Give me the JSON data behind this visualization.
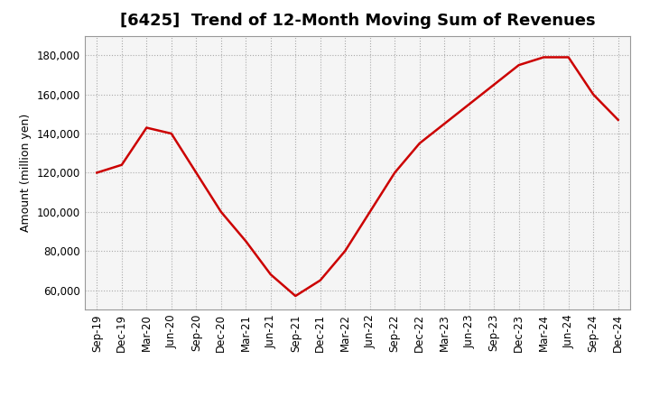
{
  "title": "[6425]  Trend of 12-Month Moving Sum of Revenues",
  "ylabel": "Amount (million yen)",
  "x_labels": [
    "Sep-19",
    "Dec-19",
    "Mar-20",
    "Jun-20",
    "Sep-20",
    "Dec-20",
    "Mar-21",
    "Jun-21",
    "Sep-21",
    "Dec-21",
    "Mar-22",
    "Jun-22",
    "Sep-22",
    "Dec-22",
    "Mar-23",
    "Jun-23",
    "Sep-23",
    "Dec-23",
    "Mar-24",
    "Jun-24",
    "Sep-24",
    "Dec-24"
  ],
  "values": [
    120000,
    124000,
    143000,
    140000,
    120000,
    100000,
    85000,
    68000,
    57000,
    65000,
    80000,
    100000,
    120000,
    135000,
    145000,
    155000,
    165000,
    175000,
    179000,
    179000,
    160000,
    147000
  ],
  "line_color": "#cc0000",
  "background_color": "#ffffff",
  "plot_bg_color": "#f5f5f5",
  "ylim": [
    50000,
    190000
  ],
  "yticks": [
    60000,
    80000,
    100000,
    120000,
    140000,
    160000,
    180000
  ],
  "title_fontsize": 13,
  "label_fontsize": 9,
  "tick_fontsize": 8.5
}
